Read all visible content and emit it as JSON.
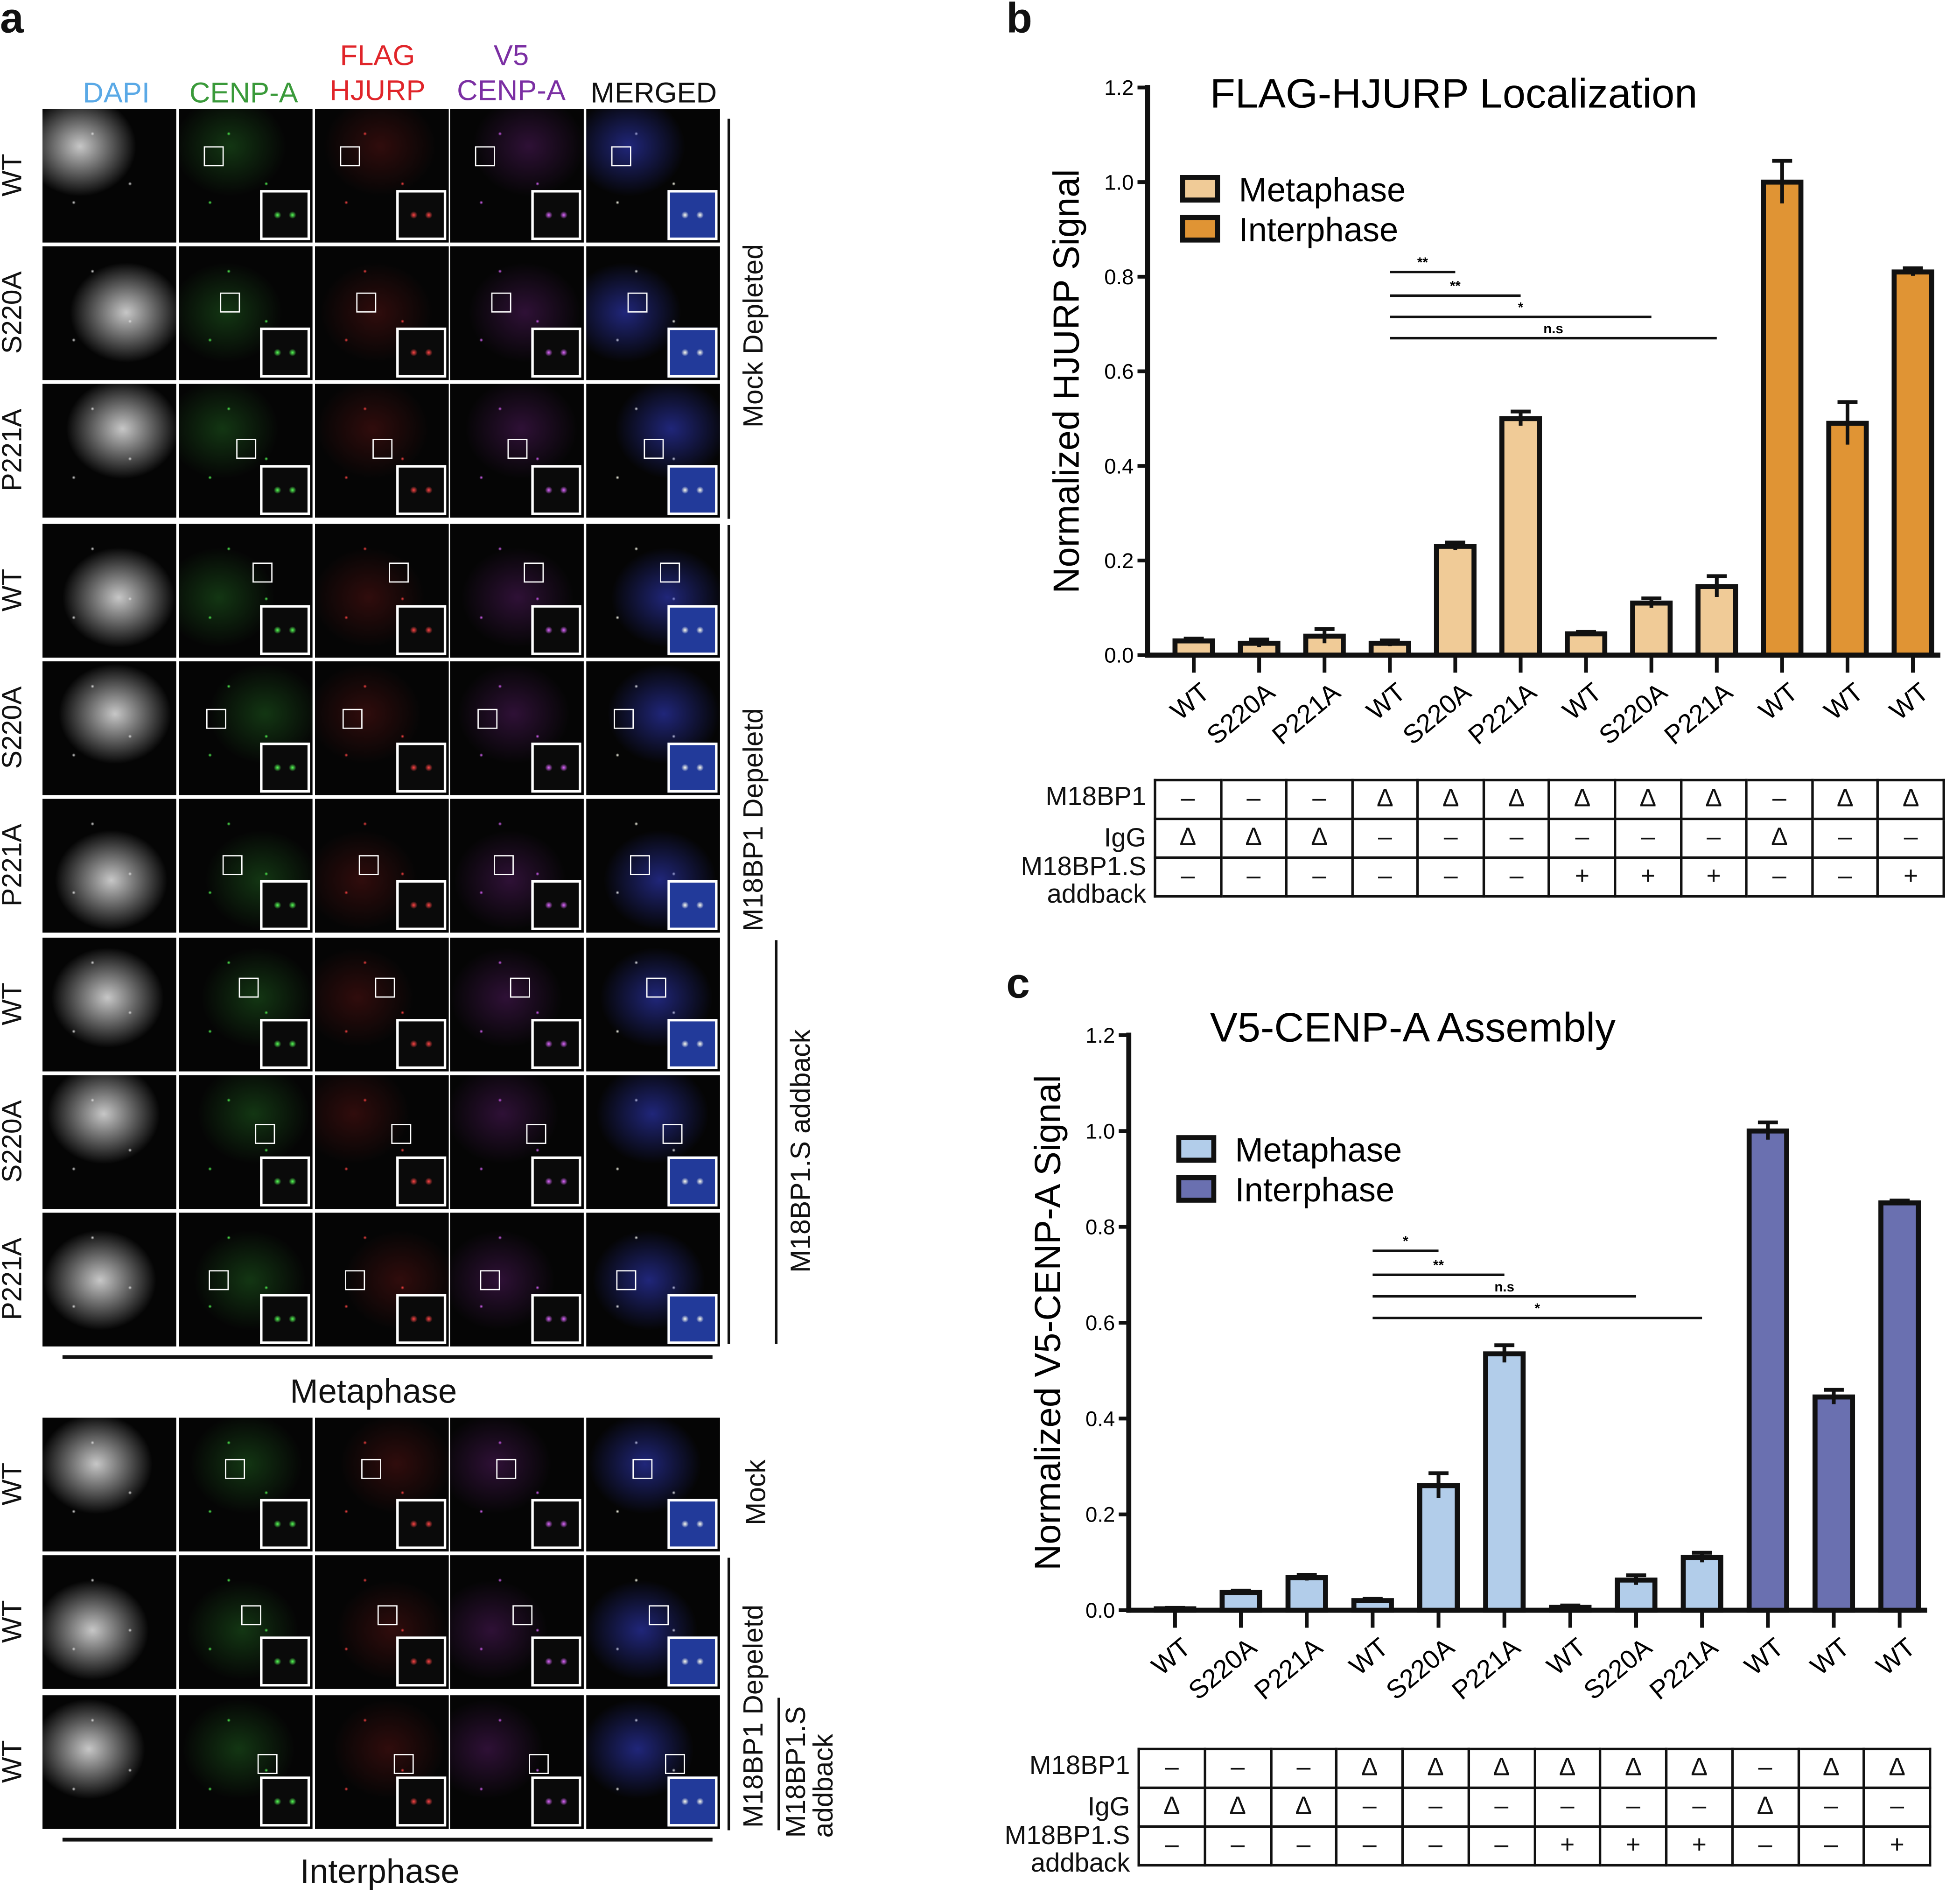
{
  "panel_a": {
    "letter": "a",
    "columns": [
      {
        "label": "DAPI",
        "color": "#5aa9e6"
      },
      {
        "label": "CENP-A",
        "color": "#3a9a3a"
      },
      {
        "label": "FLAG\nHJURP",
        "line1": "FLAG",
        "line2": "HJURP",
        "color": "#e0252a"
      },
      {
        "label": "V5\nCENP-A",
        "line1": "V5",
        "line2": "CENP-A",
        "color": "#7b2fa3"
      },
      {
        "label": "MERGED",
        "color": "#111111"
      }
    ],
    "metaphase_rows": [
      "WT",
      "S220A",
      "P221A",
      "WT",
      "S220A",
      "P221A",
      "WT",
      "S220A",
      "P221A"
    ],
    "interphase_rows": [
      "WT",
      "WT",
      "WT"
    ],
    "groups": {
      "mock_depleted": "Mock Depleted",
      "m18bp1_depleted": "M18BP1 Depeletd",
      "m18bp1s_addback": "M18BP1.S addback",
      "mock": "Mock",
      "addback_line1": "M18BP1.S",
      "addback_line2": "addback"
    },
    "metaphase_label": "Metaphase",
    "interphase_label": "Interphase"
  },
  "chart_data": [
    {
      "panel": "b",
      "type": "bar",
      "title": "FLAG-HJURP Localization",
      "ylabel": "Normalized HJURP Signal",
      "ylim": [
        0,
        1.2
      ],
      "yticks": [
        "0.0",
        "0.2",
        "0.4",
        "0.6",
        "0.8",
        "1.0",
        "1.2"
      ],
      "categories": [
        "WT",
        "S220A",
        "P221A",
        "WT",
        "S220A",
        "P221A",
        "WT",
        "S220A",
        "P221A",
        "WT",
        "WT",
        "WT"
      ],
      "phase": [
        "Metaphase",
        "Metaphase",
        "Metaphase",
        "Metaphase",
        "Metaphase",
        "Metaphase",
        "Metaphase",
        "Metaphase",
        "Metaphase",
        "Interphase",
        "Interphase",
        "Interphase"
      ],
      "values": [
        0.03,
        0.025,
        0.04,
        0.025,
        0.23,
        0.5,
        0.045,
        0.11,
        0.145,
        1.0,
        0.49,
        0.81
      ],
      "errors": [
        0.005,
        0.008,
        0.015,
        0.006,
        0.008,
        0.015,
        0.004,
        0.01,
        0.022,
        0.045,
        0.045,
        0.008
      ],
      "legend": [
        {
          "name": "Metaphase",
          "color": "#f0cb97"
        },
        {
          "name": "Interphase",
          "color": "#e09434"
        }
      ],
      "legend_position": "upper-left",
      "significance": [
        {
          "from": 3,
          "to": 4,
          "y": 0.81,
          "label": "**"
        },
        {
          "from": 3,
          "to": 5,
          "y": 0.76,
          "label": "**"
        },
        {
          "from": 3,
          "to": 7,
          "y": 0.715,
          "label": "*"
        },
        {
          "from": 3,
          "to": 8,
          "y": 0.67,
          "label": "n.s"
        }
      ],
      "conditions": [
        {
          "label": "M18BP1",
          "values": [
            "–",
            "–",
            "–",
            "Δ",
            "Δ",
            "Δ",
            "Δ",
            "Δ",
            "Δ",
            "–",
            "Δ",
            "Δ"
          ]
        },
        {
          "label": "IgG",
          "values": [
            "Δ",
            "Δ",
            "Δ",
            "–",
            "–",
            "–",
            "–",
            "–",
            "–",
            "Δ",
            "–",
            "–"
          ]
        },
        {
          "label": "M18BP1.S\naddback",
          "line1": "M18BP1.S",
          "line2": "addback",
          "values": [
            "–",
            "–",
            "–",
            "–",
            "–",
            "–",
            "+",
            "+",
            "+",
            "–",
            "–",
            "+"
          ]
        }
      ]
    },
    {
      "panel": "c",
      "type": "bar",
      "title": "V5-CENP-A Assembly",
      "ylabel": "Normalized V5-CENP-A Signal",
      "ylim": [
        0,
        1.2
      ],
      "yticks": [
        "0.0",
        "0.2",
        "0.4",
        "0.6",
        "0.8",
        "1.0",
        "1.2"
      ],
      "categories": [
        "WT",
        "S220A",
        "P221A",
        "WT",
        "S220A",
        "P221A",
        "WT",
        "S220A",
        "P221A",
        "WT",
        "WT",
        "WT"
      ],
      "phase": [
        "Metaphase",
        "Metaphase",
        "Metaphase",
        "Metaphase",
        "Metaphase",
        "Metaphase",
        "Metaphase",
        "Metaphase",
        "Metaphase",
        "Interphase",
        "Interphase",
        "Interphase"
      ],
      "values": [
        0.003,
        0.037,
        0.068,
        0.02,
        0.26,
        0.535,
        0.006,
        0.063,
        0.11,
        1.0,
        0.445,
        0.85
      ],
      "errors": [
        0.002,
        0.004,
        0.006,
        0.004,
        0.026,
        0.018,
        0.004,
        0.01,
        0.01,
        0.018,
        0.015,
        0.005
      ],
      "legend": [
        {
          "name": "Metaphase",
          "color": "#b2cdea"
        },
        {
          "name": "Interphase",
          "color": "#6a70b0"
        }
      ],
      "legend_position": "upper-left",
      "significance": [
        {
          "from": 3,
          "to": 4,
          "y": 0.75,
          "label": "*"
        },
        {
          "from": 3,
          "to": 5,
          "y": 0.7,
          "label": "**"
        },
        {
          "from": 3,
          "to": 7,
          "y": 0.655,
          "label": "n.s"
        },
        {
          "from": 3,
          "to": 8,
          "y": 0.61,
          "label": "*"
        }
      ],
      "conditions": [
        {
          "label": "M18BP1",
          "values": [
            "–",
            "–",
            "–",
            "Δ",
            "Δ",
            "Δ",
            "Δ",
            "Δ",
            "Δ",
            "–",
            "Δ",
            "Δ"
          ]
        },
        {
          "label": "IgG",
          "values": [
            "Δ",
            "Δ",
            "Δ",
            "–",
            "–",
            "–",
            "–",
            "–",
            "–",
            "Δ",
            "–",
            "–"
          ]
        },
        {
          "label": "M18BP1.S\naddback",
          "line1": "M18BP1.S",
          "line2": "addback",
          "values": [
            "–",
            "–",
            "–",
            "–",
            "–",
            "–",
            "+",
            "+",
            "+",
            "–",
            "–",
            "+"
          ]
        }
      ]
    }
  ]
}
